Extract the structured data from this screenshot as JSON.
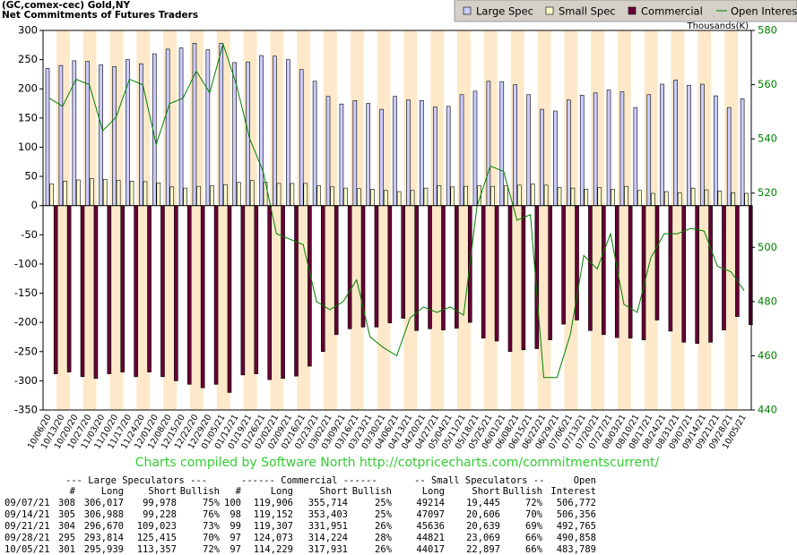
{
  "chart_data": {
    "type": "bar",
    "title": "(GC,comex-cec) Gold,NY",
    "subtitle": "Net Commitments of Futures Traders",
    "y2_label": "Thousands(K)",
    "categories": [
      "10/06/20",
      "10/13/20",
      "10/20/20",
      "10/27/20",
      "11/03/20",
      "11/10/20",
      "11/17/20",
      "11/24/20",
      "12/01/20",
      "12/08/20",
      "12/15/20",
      "12/22/20",
      "12/29/20",
      "01/05/21",
      "01/12/21",
      "01/19/21",
      "01/26/21",
      "02/02/21",
      "02/09/21",
      "02/16/21",
      "02/23/21",
      "03/02/21",
      "03/09/21",
      "03/16/21",
      "03/23/21",
      "03/30/21",
      "04/06/21",
      "04/13/21",
      "04/20/21",
      "04/27/21",
      "05/04/21",
      "05/11/21",
      "05/18/21",
      "05/25/21",
      "06/01/21",
      "06/08/21",
      "06/15/21",
      "06/22/21",
      "06/29/21",
      "07/06/21",
      "07/13/21",
      "07/20/21",
      "07/27/21",
      "08/03/21",
      "08/10/21",
      "08/17/21",
      "08/24/21",
      "08/31/21",
      "09/07/21",
      "09/14/21",
      "09/21/21",
      "09/28/21",
      "10/05/21"
    ],
    "series": [
      {
        "name": "Large Spec",
        "type": "bar",
        "color": "#ccccff",
        "values": [
          235,
          240,
          248,
          247,
          241,
          238,
          250,
          243,
          260,
          268,
          270,
          278,
          267,
          278,
          245,
          246,
          257,
          256,
          250,
          233,
          213,
          187,
          174,
          180,
          175,
          165,
          187,
          181,
          180,
          169,
          170,
          190,
          196,
          213,
          212,
          207,
          190,
          165,
          162,
          181,
          189,
          193,
          198,
          195,
          168,
          190,
          208,
          215,
          206,
          208,
          188,
          168,
          183
        ]
      },
      {
        "name": "Small Spec",
        "type": "bar",
        "color": "#ffffcc",
        "values": [
          37,
          42,
          44,
          46,
          45,
          43,
          42,
          41,
          39,
          32,
          30,
          33,
          34,
          36,
          40,
          43,
          40,
          38,
          38,
          38,
          34,
          32,
          30,
          29,
          28,
          26,
          24,
          26,
          30,
          34,
          32,
          33,
          34,
          33,
          34,
          35,
          37,
          35,
          31,
          30,
          28,
          31,
          28,
          33,
          26,
          21,
          24,
          22,
          30,
          27,
          25,
          22,
          21
        ]
      },
      {
        "name": "Commercial",
        "type": "bar",
        "color": "#660033",
        "values": [
          -288,
          -285,
          -293,
          -296,
          -288,
          -285,
          -293,
          -285,
          -293,
          -300,
          -306,
          -312,
          -306,
          -320,
          -290,
          -288,
          -298,
          -296,
          -292,
          -275,
          -250,
          -221,
          -211,
          -208,
          -208,
          -201,
          -193,
          -214,
          -211,
          -213,
          -210,
          -200,
          -227,
          -232,
          -250,
          -247,
          -245,
          -230,
          -203,
          -196,
          -214,
          -221,
          -226,
          -227,
          -230,
          -196,
          -215,
          -234,
          -236,
          -234,
          -213,
          -190,
          -204
        ]
      },
      {
        "name": "Open Interest",
        "type": "line",
        "axis": "y2",
        "color": "#008000",
        "values": [
          555,
          552,
          562,
          560,
          543,
          548,
          562,
          560,
          538,
          553,
          555,
          565,
          557,
          575,
          560,
          540,
          528,
          505,
          503,
          501,
          480,
          477,
          480,
          488,
          467,
          463,
          460,
          474,
          478,
          476,
          478,
          475,
          515,
          530,
          528,
          510,
          512,
          452,
          452,
          468,
          497,
          492,
          505,
          479,
          476,
          496,
          505,
          505,
          507,
          506,
          493,
          491,
          484
        ]
      }
    ],
    "ylim": [
      -350,
      300
    ],
    "yticks": [
      -350,
      -300,
      -250,
      -200,
      -150,
      -100,
      -50,
      0,
      50,
      100,
      150,
      200,
      250,
      300
    ],
    "y2lim": [
      440,
      580
    ],
    "y2ticks": [
      440,
      460,
      480,
      500,
      520,
      540,
      560,
      580
    ],
    "legend": "top-right",
    "band_color": "#fde9c9"
  },
  "caption": "Charts compiled by Software North  http://cotpricecharts.com/commitmentscurrent/",
  "table": {
    "header_groups": [
      "--- Large Speculators ---",
      "------ Commercial ------",
      "-- Small Speculators --",
      "Open"
    ],
    "columns": [
      "#",
      "Long",
      "Short",
      "Bullish",
      "#",
      "Long",
      "Short",
      "Bullish",
      "Long",
      "Short",
      "Bullish",
      "Interest"
    ],
    "rows": [
      [
        "09/07/21",
        "308",
        "306,017",
        "99,978",
        "75%",
        "100",
        "119,906",
        "355,714",
        "25%",
        "49214",
        "19,445",
        "72%",
        "506,772"
      ],
      [
        "09/14/21",
        "305",
        "306,988",
        "99,228",
        "76%",
        "98",
        "119,152",
        "353,403",
        "25%",
        "47097",
        "20,606",
        "70%",
        "506,356"
      ],
      [
        "09/21/21",
        "304",
        "296,670",
        "109,023",
        "73%",
        "99",
        "119,307",
        "331,951",
        "26%",
        "45636",
        "20,639",
        "69%",
        "492,765"
      ],
      [
        "09/28/21",
        "295",
        "293,814",
        "125,415",
        "70%",
        "97",
        "124,073",
        "314,224",
        "28%",
        "44821",
        "23,069",
        "66%",
        "490,858"
      ],
      [
        "10/05/21",
        "301",
        "295,939",
        "113,357",
        "72%",
        "97",
        "114,229",
        "317,931",
        "26%",
        "44017",
        "22,897",
        "66%",
        "483,789"
      ]
    ]
  }
}
